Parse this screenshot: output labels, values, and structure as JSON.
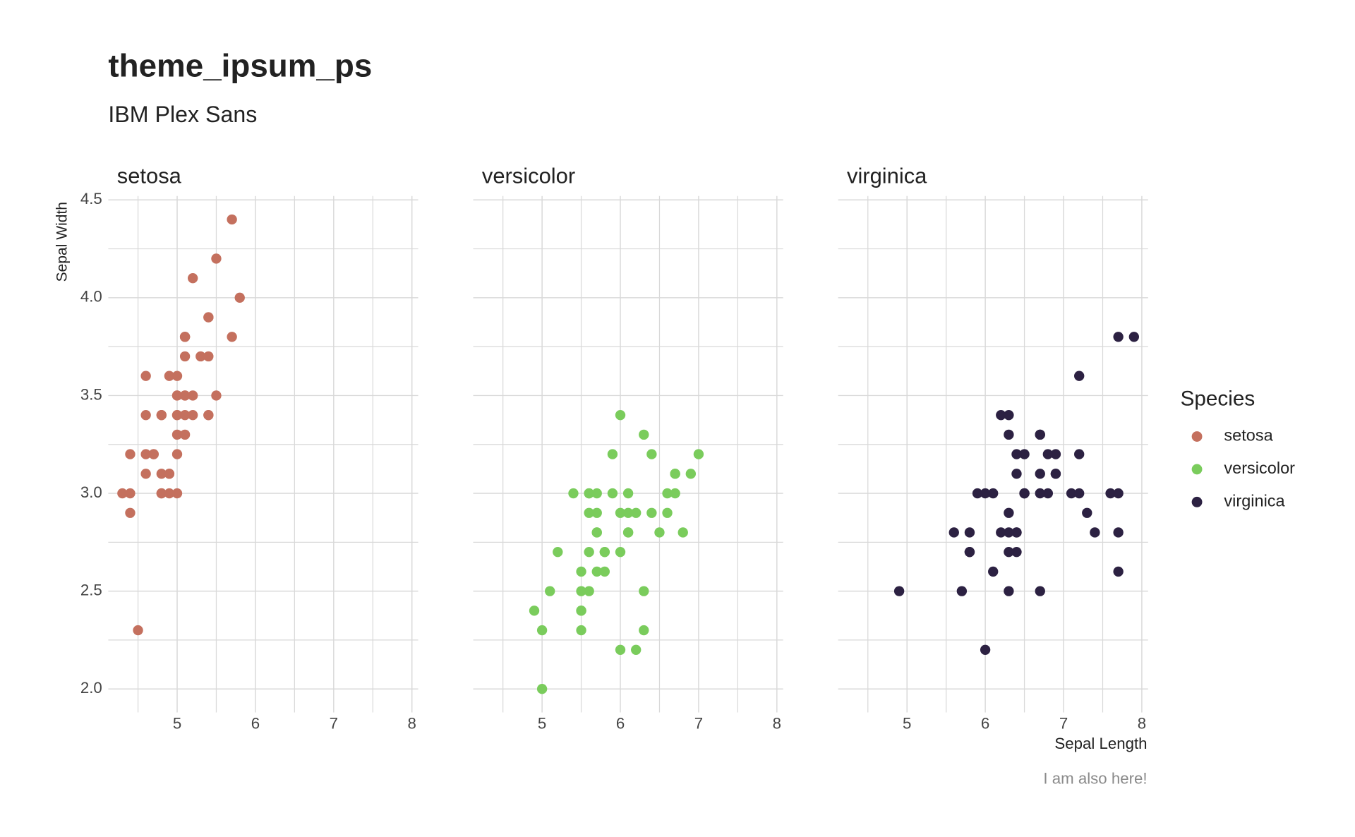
{
  "chart_data": {
    "type": "scatter",
    "title": "theme_ipsum_ps",
    "subtitle": "IBM Plex Sans",
    "caption": "I am also here!",
    "x_label": "Sepal Length",
    "y_label": "Sepal Width",
    "legend_title": "Species",
    "legend_position": "right",
    "grid": true,
    "xlim": [
      4.12,
      8.08
    ],
    "ylim": [
      1.88,
      4.52
    ],
    "xticks": [
      5,
      6,
      7,
      8
    ],
    "yticks": [
      {
        "value": 2,
        "label": "2.0"
      },
      {
        "value": 2.5,
        "label": "2.5"
      },
      {
        "value": 3,
        "label": "3.0"
      },
      {
        "value": 3.5,
        "label": "3.5"
      },
      {
        "value": 4,
        "label": "4.0"
      },
      {
        "value": 4.5,
        "label": "4.5"
      }
    ],
    "minor_xticks": [
      4.5,
      5.5,
      6.5,
      7.5
    ],
    "minor_yticks": [
      2.25,
      2.75,
      3.25,
      3.75,
      4.25
    ],
    "series": [
      {
        "name": "setosa",
        "color": "#c4705e",
        "x": [
          5.1,
          4.9,
          4.7,
          4.6,
          5.0,
          5.4,
          4.6,
          5.0,
          4.4,
          4.9,
          5.4,
          4.8,
          4.8,
          4.3,
          5.8,
          5.7,
          5.4,
          5.1,
          5.7,
          5.1,
          5.4,
          5.1,
          4.6,
          5.1,
          4.8,
          5.0,
          5.0,
          5.2,
          5.2,
          4.7,
          4.8,
          5.4,
          5.2,
          5.5,
          4.9,
          5.0,
          5.5,
          4.9,
          4.4,
          5.1,
          5.0,
          4.5,
          4.4,
          5.0,
          5.1,
          4.8,
          5.1,
          4.6,
          5.3,
          5.0
        ],
        "values": [
          3.5,
          3.0,
          3.2,
          3.1,
          3.6,
          3.9,
          3.4,
          3.4,
          2.9,
          3.1,
          3.7,
          3.4,
          3.0,
          3.0,
          4.0,
          4.4,
          3.9,
          3.5,
          3.8,
          3.8,
          3.4,
          3.7,
          3.6,
          3.3,
          3.4,
          3.0,
          3.4,
          3.5,
          3.4,
          3.2,
          3.1,
          3.4,
          4.1,
          4.2,
          3.1,
          3.2,
          3.5,
          3.6,
          3.0,
          3.4,
          3.5,
          2.3,
          3.2,
          3.5,
          3.8,
          3.0,
          3.8,
          3.2,
          3.7,
          3.3
        ]
      },
      {
        "name": "versicolor",
        "color": "#7acc5c",
        "x": [
          7.0,
          6.4,
          6.9,
          5.5,
          6.5,
          5.7,
          6.3,
          4.9,
          6.6,
          5.2,
          5.0,
          5.9,
          6.0,
          6.1,
          5.6,
          6.7,
          5.6,
          5.8,
          6.2,
          5.6,
          5.9,
          6.1,
          6.3,
          6.1,
          6.4,
          6.6,
          6.8,
          6.7,
          6.0,
          5.7,
          5.5,
          5.5,
          5.8,
          6.0,
          5.4,
          6.0,
          6.7,
          6.3,
          5.6,
          5.5,
          5.5,
          6.1,
          5.8,
          5.0,
          5.6,
          5.7,
          5.7,
          6.2,
          5.1,
          5.7
        ],
        "values": [
          3.2,
          3.2,
          3.1,
          2.3,
          2.8,
          2.8,
          3.3,
          2.4,
          2.9,
          2.7,
          2.0,
          3.0,
          2.2,
          2.9,
          2.9,
          3.1,
          3.0,
          2.7,
          2.2,
          2.5,
          3.2,
          2.8,
          2.5,
          2.8,
          2.9,
          3.0,
          2.8,
          3.0,
          2.9,
          2.6,
          2.4,
          2.4,
          2.7,
          2.7,
          3.0,
          3.4,
          3.1,
          2.3,
          3.0,
          2.5,
          2.6,
          3.0,
          2.6,
          2.3,
          2.7,
          3.0,
          2.9,
          2.9,
          2.5,
          2.8
        ]
      },
      {
        "name": "virginica",
        "color": "#2c2142",
        "x": [
          6.3,
          5.8,
          7.1,
          6.3,
          6.5,
          7.6,
          4.9,
          7.3,
          6.7,
          7.2,
          6.5,
          6.4,
          6.8,
          5.7,
          5.8,
          6.4,
          6.5,
          7.7,
          7.7,
          6.0,
          6.9,
          5.6,
          7.7,
          6.3,
          6.7,
          7.2,
          6.2,
          6.1,
          6.4,
          7.2,
          7.4,
          7.9,
          6.4,
          6.3,
          6.1,
          7.7,
          6.3,
          6.4,
          6.0,
          6.9,
          6.7,
          6.9,
          5.8,
          6.8,
          6.7,
          6.7,
          6.3,
          6.5,
          6.2,
          5.9
        ],
        "values": [
          3.3,
          2.7,
          3.0,
          2.9,
          3.0,
          3.0,
          2.5,
          2.9,
          2.5,
          3.6,
          3.2,
          2.7,
          3.0,
          2.5,
          2.8,
          3.2,
          3.0,
          3.8,
          2.6,
          2.2,
          3.2,
          2.8,
          2.8,
          2.7,
          3.3,
          3.2,
          2.8,
          3.0,
          2.8,
          3.0,
          2.8,
          3.8,
          2.8,
          2.8,
          2.6,
          3.0,
          3.4,
          3.1,
          3.0,
          3.1,
          3.1,
          3.1,
          2.7,
          3.2,
          3.3,
          3.0,
          2.5,
          3.0,
          3.4,
          3.0
        ]
      }
    ]
  }
}
